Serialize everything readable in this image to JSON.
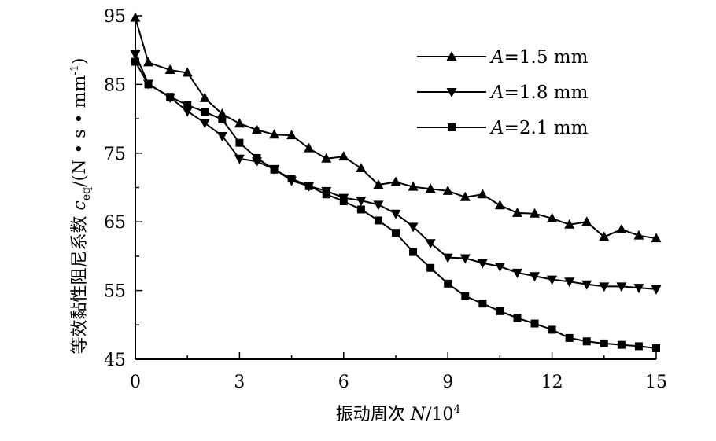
{
  "chart_data": {
    "type": "line",
    "title": "",
    "xlabel": {
      "text": "振动周次 ",
      "var": "N",
      "rest": "/10",
      "sup": "4"
    },
    "ylabel": {
      "text": "等效黏性阻尼系数 ",
      "var": "c",
      "sub": "eq",
      "rest": "/(N • s • mm",
      "sup": "-1",
      "end": ")"
    },
    "xlim": [
      0,
      15
    ],
    "ylim": [
      45,
      95
    ],
    "x_ticks": [
      "0",
      "3",
      "6",
      "9",
      "12",
      "15"
    ],
    "y_ticks": [
      "45",
      "55",
      "65",
      "75",
      "85",
      "95"
    ],
    "grid": false,
    "legend_position": "top-right",
    "x": [
      0,
      0.375,
      1,
      1.5,
      2,
      2.5,
      3,
      3.5,
      4,
      4.5,
      5,
      5.5,
      6,
      6.5,
      7,
      7.5,
      8,
      8.5,
      9,
      9.5,
      10,
      10.5,
      11,
      11.5,
      12,
      12.5,
      13,
      13.5,
      14,
      14.5,
      15
    ],
    "series": [
      {
        "name": "A=1.5 mm",
        "legend_var": "A",
        "legend_rest": "=1.5 mm",
        "marker": "triangle-up",
        "values": [
          94.7,
          88.2,
          87.1,
          86.7,
          83.0,
          80.7,
          79.3,
          78.4,
          77.7,
          77.6,
          75.7,
          74.2,
          74.5,
          72.8,
          70.4,
          70.8,
          70.1,
          69.8,
          69.5,
          68.6,
          69.0,
          67.4,
          66.3,
          66.2,
          65.5,
          64.6,
          65.0,
          62.8,
          63.9,
          63.0,
          62.6
        ]
      },
      {
        "name": "A=1.8 mm",
        "legend_var": "A",
        "legend_rest": "=1.8 mm",
        "marker": "triangle-down",
        "values": [
          89.4,
          85.1,
          83.1,
          81.1,
          79.4,
          77.5,
          74.2,
          73.8,
          72.7,
          71.0,
          70.2,
          69.5,
          68.5,
          68.1,
          67.5,
          66.2,
          64.3,
          61.9,
          59.8,
          59.7,
          59.0,
          58.5,
          57.6,
          57.1,
          56.6,
          56.3,
          55.9,
          55.6,
          55.6,
          55.4,
          55.2
        ]
      },
      {
        "name": "A=2.1 mm",
        "legend_var": "A",
        "legend_rest": "=2.1 mm",
        "marker": "square",
        "values": [
          88.3,
          85.0,
          83.2,
          82.0,
          81.0,
          79.9,
          76.5,
          74.3,
          72.6,
          71.3,
          70.2,
          69.0,
          68.0,
          66.8,
          65.2,
          63.4,
          60.6,
          58.3,
          56.0,
          54.2,
          53.1,
          52.0,
          51.0,
          50.2,
          49.3,
          48.1,
          47.6,
          47.3,
          47.1,
          46.9,
          46.6
        ]
      }
    ]
  }
}
